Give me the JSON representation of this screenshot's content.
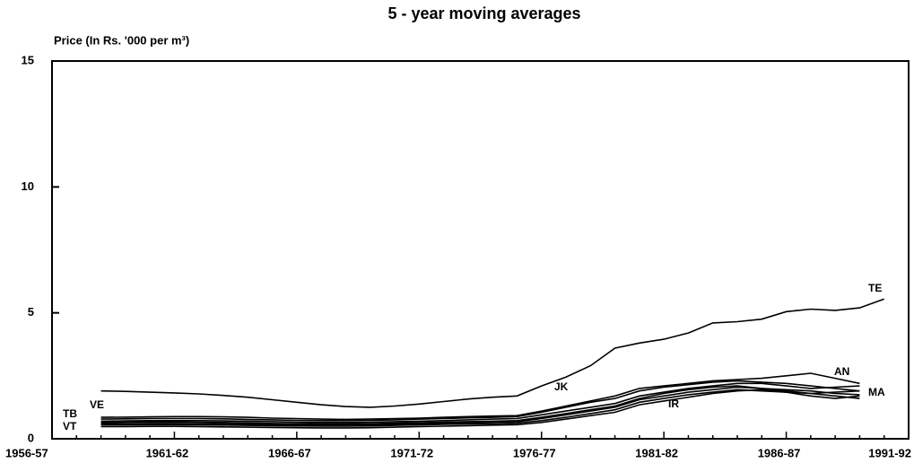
{
  "chart_data": {
    "type": "line",
    "title": "5 - year moving averages",
    "ylabel": "Price (In Rs. '000 per m³)",
    "categories": [
      "1956-57",
      null,
      null,
      null,
      null,
      "1961-62",
      null,
      null,
      null,
      null,
      "1966-67",
      null,
      null,
      null,
      null,
      "1971-72",
      null,
      null,
      null,
      null,
      "1976-77",
      null,
      null,
      null,
      null,
      "1981-82",
      null,
      null,
      null,
      null,
      "1986-87",
      null,
      null,
      null,
      null,
      "1991-92"
    ],
    "ylim": [
      0,
      15
    ],
    "yticks": [
      0,
      5,
      10,
      15
    ],
    "grid": false,
    "series": [
      {
        "name": "TE",
        "color": "#000000",
        "values": [
          null,
          null,
          1.9,
          1.88,
          1.85,
          1.82,
          1.78,
          1.72,
          1.65,
          1.55,
          1.45,
          1.35,
          1.28,
          1.25,
          1.3,
          1.38,
          1.48,
          1.58,
          1.65,
          1.7,
          2.1,
          2.45,
          2.9,
          3.6,
          3.8,
          3.95,
          4.2,
          4.6,
          4.65,
          4.75,
          5.05,
          5.15,
          5.1,
          5.2,
          5.55,
          null
        ]
      },
      {
        "name": "VE",
        "color": "#000000",
        "values": [
          null,
          null,
          0.85,
          0.86,
          0.87,
          0.88,
          0.88,
          0.87,
          0.85,
          0.82,
          0.8,
          0.78,
          0.77,
          0.78,
          0.8,
          0.82,
          0.85,
          0.88,
          0.9,
          0.92,
          1.1,
          1.3,
          1.5,
          1.7,
          2.0,
          2.1,
          2.2,
          2.3,
          2.35,
          2.4,
          2.5,
          2.6,
          2.4,
          2.2,
          null,
          null
        ]
      },
      {
        "name": "JK",
        "color": "#000000",
        "values": [
          null,
          null,
          0.78,
          0.79,
          0.8,
          0.8,
          0.8,
          0.79,
          0.77,
          0.75,
          0.73,
          0.72,
          0.72,
          0.73,
          0.75,
          0.78,
          0.8,
          0.83,
          0.85,
          0.88,
          1.05,
          1.25,
          1.45,
          1.6,
          1.9,
          2.05,
          2.15,
          2.25,
          2.3,
          2.25,
          2.2,
          2.1,
          2.0,
          1.9,
          null,
          null
        ]
      },
      {
        "name": "AN",
        "color": "#000000",
        "values": [
          null,
          null,
          0.7,
          0.71,
          0.72,
          0.72,
          0.72,
          0.71,
          0.7,
          0.68,
          0.66,
          0.65,
          0.65,
          0.66,
          0.68,
          0.7,
          0.72,
          0.75,
          0.78,
          0.8,
          0.95,
          1.1,
          1.25,
          1.4,
          1.7,
          1.85,
          2.0,
          2.1,
          2.2,
          2.2,
          2.1,
          2.0,
          2.05,
          2.1,
          null,
          null
        ]
      },
      {
        "name": "TB",
        "color": "#000000",
        "values": [
          null,
          null,
          0.65,
          0.66,
          0.67,
          0.67,
          0.66,
          0.65,
          0.63,
          0.61,
          0.6,
          0.59,
          0.59,
          0.6,
          0.62,
          0.64,
          0.66,
          0.68,
          0.7,
          0.72,
          0.85,
          1.0,
          1.15,
          1.3,
          1.6,
          1.8,
          1.95,
          2.05,
          2.1,
          2.0,
          1.9,
          1.8,
          1.7,
          1.6,
          null,
          null
        ]
      },
      {
        "name": "MA",
        "color": "#000000",
        "values": [
          null,
          null,
          0.6,
          0.6,
          0.61,
          0.61,
          0.6,
          0.59,
          0.58,
          0.56,
          0.55,
          0.55,
          0.55,
          0.56,
          0.58,
          0.6,
          0.62,
          0.64,
          0.66,
          0.68,
          0.8,
          0.95,
          1.1,
          1.25,
          1.55,
          1.7,
          1.85,
          1.95,
          2.05,
          2.0,
          1.95,
          1.9,
          1.8,
          1.75,
          null,
          null
        ]
      },
      {
        "name": "IR",
        "color": "#000000",
        "values": [
          null,
          null,
          0.55,
          0.55,
          0.56,
          0.56,
          0.55,
          0.54,
          0.53,
          0.52,
          0.51,
          0.5,
          0.5,
          0.51,
          0.53,
          0.55,
          0.57,
          0.59,
          0.6,
          0.62,
          0.72,
          0.85,
          1.0,
          1.15,
          1.45,
          1.6,
          1.75,
          1.85,
          1.95,
          1.9,
          1.85,
          1.8,
          1.85,
          1.9,
          null,
          null
        ]
      },
      {
        "name": "VT",
        "color": "#000000",
        "values": [
          null,
          null,
          0.48,
          0.48,
          0.49,
          0.49,
          0.48,
          0.47,
          0.46,
          0.45,
          0.44,
          0.43,
          0.43,
          0.44,
          0.46,
          0.48,
          0.5,
          0.52,
          0.54,
          0.56,
          0.65,
          0.78,
          0.92,
          1.05,
          1.35,
          1.5,
          1.65,
          1.8,
          1.9,
          1.95,
          1.85,
          1.7,
          1.6,
          1.7,
          null,
          null
        ]
      }
    ]
  }
}
